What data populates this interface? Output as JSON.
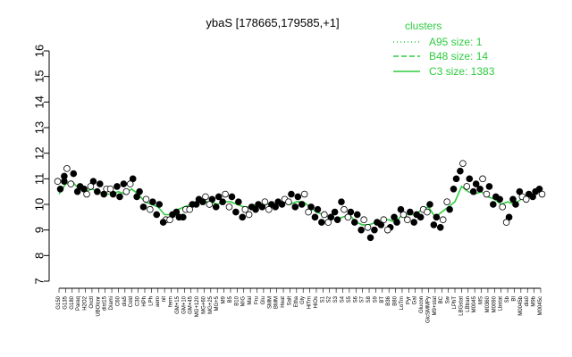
{
  "chart_data": {
    "type": "scatter",
    "title": "ybaS [178665,179585,+1]",
    "ylim": [
      7,
      16
    ],
    "yticks": [
      7,
      8,
      9,
      10,
      11,
      12,
      13,
      14,
      15,
      16
    ],
    "xlabel": "",
    "ylabel": "",
    "grid": false,
    "legend": {
      "title": "clusters",
      "placement": "top-right",
      "entries": [
        {
          "label": "A95 size: 1",
          "style": "dotted"
        },
        {
          "label": "B48 size: 14",
          "style": "dashed"
        },
        {
          "label": "C3 size: 1383",
          "style": "solid"
        }
      ]
    },
    "x_labels": [
      "G150",
      "G135",
      "G180",
      "Paraq",
      "H2O2",
      "Oxctl",
      "UBOlcnr",
      "dist15",
      "Diami",
      "C60",
      "dia5",
      "Cold",
      "C30",
      "HPh",
      "LPh",
      "aero",
      "nit",
      "ferm",
      "GM+15",
      "GM+10",
      "GM+45",
      "MG+120",
      "MG+60",
      "MG+25",
      "MG+5",
      "M9",
      "B5",
      "B10",
      "M/G",
      "Mal",
      "Fru",
      "Glu",
      "SMM",
      "BMM",
      "Heat",
      "Salt",
      "Etha",
      "Gly",
      "HiTm",
      "HiOs",
      "S1",
      "S2",
      "S3",
      "S4",
      "S5",
      "S6",
      "S7",
      "S8",
      "S9",
      "BT",
      "B36",
      "B80",
      "LoTm",
      "Pyr",
      "Gal",
      "Glucon",
      "GlcSMMPy",
      "M9+stat",
      "BC",
      "Sw",
      "LPhT",
      "LBGstat",
      "LBtran",
      "M0045",
      "MS",
      "M0360",
      "M0090",
      "Lbstat",
      "Sb",
      "BI",
      "M0045b",
      "dia0",
      "M9b",
      "M0045c"
    ],
    "series": [
      {
        "name": "C3",
        "color": "#2ecc40",
        "line_style": "solid",
        "values": [
          10.4,
          10.8,
          10.9,
          10.6,
          10.5,
          10.6,
          10.5,
          10.4,
          10.4,
          10.5,
          10.4,
          10.6,
          10.4,
          10.1,
          10.0,
          9.9,
          9.6,
          9.6,
          9.8,
          9.9,
          10.0,
          10.0,
          10.1,
          10.1,
          10.0,
          10.1,
          10.1,
          10.0,
          9.9,
          9.9,
          10.0,
          10.0,
          10.0,
          10.0,
          10.1,
          10.0,
          10.1,
          10.1,
          9.9,
          9.7,
          9.6,
          9.5,
          9.4,
          9.5,
          9.6,
          9.3,
          9.2,
          9.2,
          9.3,
          9.4,
          9.4,
          9.3,
          9.6,
          9.6,
          9.6,
          9.8,
          9.9,
          9.5,
          9.7,
          9.9,
          10.1,
          10.7,
          10.5,
          10.4,
          10.5,
          10.3,
          10.2,
          10.0,
          10.1,
          10.0,
          10.2,
          10.3,
          10.4,
          10.5
        ]
      }
    ],
    "points": [
      [
        0,
        10.9
      ],
      [
        0,
        10.6
      ],
      [
        1,
        11.1
      ],
      [
        1,
        11.4
      ],
      [
        1,
        10.9
      ],
      [
        2,
        11.2
      ],
      [
        2,
        10.8
      ],
      [
        3,
        10.7
      ],
      [
        3,
        10.5
      ],
      [
        4,
        10.4
      ],
      [
        4,
        10.6
      ],
      [
        5,
        10.9
      ],
      [
        5,
        10.7
      ],
      [
        6,
        10.8
      ],
      [
        6,
        10.5
      ],
      [
        7,
        10.6
      ],
      [
        7,
        10.4
      ],
      [
        8,
        10.4
      ],
      [
        8,
        10.6
      ],
      [
        9,
        10.3
      ],
      [
        9,
        10.7
      ],
      [
        10,
        10.5
      ],
      [
        10,
        10.8
      ],
      [
        11,
        11.0
      ],
      [
        11,
        10.8
      ],
      [
        12,
        10.5
      ],
      [
        12,
        10.3
      ],
      [
        13,
        10.2
      ],
      [
        13,
        9.9
      ],
      [
        14,
        10.1
      ],
      [
        14,
        9.8
      ],
      [
        15,
        10.0
      ],
      [
        15,
        9.6
      ],
      [
        16,
        9.4
      ],
      [
        16,
        9.3
      ],
      [
        17,
        9.6
      ],
      [
        17,
        9.4
      ],
      [
        18,
        9.5
      ],
      [
        18,
        9.7
      ],
      [
        19,
        9.8
      ],
      [
        19,
        9.5
      ],
      [
        20,
        10.0
      ],
      [
        20,
        9.8
      ],
      [
        21,
        10.2
      ],
      [
        21,
        10.0
      ],
      [
        22,
        10.3
      ],
      [
        22,
        10.1
      ],
      [
        23,
        10.2
      ],
      [
        23,
        10.0
      ],
      [
        24,
        10.3
      ],
      [
        24,
        9.9
      ],
      [
        25,
        10.4
      ],
      [
        25,
        10.1
      ],
      [
        26,
        10.3
      ],
      [
        26,
        9.9
      ],
      [
        27,
        10.1
      ],
      [
        27,
        9.7
      ],
      [
        28,
        9.8
      ],
      [
        28,
        9.5
      ],
      [
        29,
        9.9
      ],
      [
        29,
        9.6
      ],
      [
        30,
        10.0
      ],
      [
        30,
        9.8
      ],
      [
        31,
        10.1
      ],
      [
        31,
        9.9
      ],
      [
        32,
        10.0
      ],
      [
        32,
        9.8
      ],
      [
        33,
        10.1
      ],
      [
        33,
        9.9
      ],
      [
        34,
        10.2
      ],
      [
        34,
        10.0
      ],
      [
        35,
        10.4
      ],
      [
        35,
        10.1
      ],
      [
        36,
        10.3
      ],
      [
        36,
        9.9
      ],
      [
        37,
        10.4
      ],
      [
        37,
        10.0
      ],
      [
        38,
        9.9
      ],
      [
        38,
        9.7
      ],
      [
        39,
        9.8
      ],
      [
        39,
        9.5
      ],
      [
        40,
        9.6
      ],
      [
        40,
        9.3
      ],
      [
        41,
        9.5
      ],
      [
        41,
        9.3
      ],
      [
        42,
        9.4
      ],
      [
        42,
        9.7
      ],
      [
        43,
        9.8
      ],
      [
        43,
        10.1
      ],
      [
        44,
        9.7
      ],
      [
        44,
        9.5
      ],
      [
        45,
        9.6
      ],
      [
        45,
        9.3
      ],
      [
        46,
        9.4
      ],
      [
        46,
        9.0
      ],
      [
        47,
        8.7
      ],
      [
        47,
        9.1
      ],
      [
        48,
        9.3
      ],
      [
        48,
        9.0
      ],
      [
        49,
        9.4
      ],
      [
        49,
        9.2
      ],
      [
        50,
        9.1
      ],
      [
        50,
        9.0
      ],
      [
        51,
        9.3
      ],
      [
        51,
        9.5
      ],
      [
        52,
        9.6
      ],
      [
        52,
        9.8
      ],
      [
        53,
        9.7
      ],
      [
        53,
        9.4
      ],
      [
        54,
        9.6
      ],
      [
        54,
        9.3
      ],
      [
        55,
        9.8
      ],
      [
        55,
        9.5
      ],
      [
        56,
        10.0
      ],
      [
        56,
        9.7
      ],
      [
        57,
        9.5
      ],
      [
        57,
        9.2
      ],
      [
        58,
        9.4
      ],
      [
        58,
        9.1
      ],
      [
        59,
        9.8
      ],
      [
        59,
        10.1
      ],
      [
        60,
        11.0
      ],
      [
        60,
        10.6
      ],
      [
        61,
        11.6
      ],
      [
        61,
        11.3
      ],
      [
        62,
        11.0
      ],
      [
        62,
        10.7
      ],
      [
        63,
        10.8
      ],
      [
        63,
        10.5
      ],
      [
        64,
        11.0
      ],
      [
        64,
        10.6
      ],
      [
        65,
        10.7
      ],
      [
        65,
        10.4
      ],
      [
        66,
        10.3
      ],
      [
        66,
        10.0
      ],
      [
        67,
        9.9
      ],
      [
        67,
        10.2
      ],
      [
        68,
        9.5
      ],
      [
        68,
        9.3
      ],
      [
        69,
        10.0
      ],
      [
        69,
        10.2
      ],
      [
        70,
        10.3
      ],
      [
        70,
        10.5
      ],
      [
        71,
        10.4
      ],
      [
        71,
        10.2
      ],
      [
        72,
        10.5
      ],
      [
        72,
        10.3
      ],
      [
        73,
        10.4
      ],
      [
        73,
        10.6
      ]
    ]
  }
}
